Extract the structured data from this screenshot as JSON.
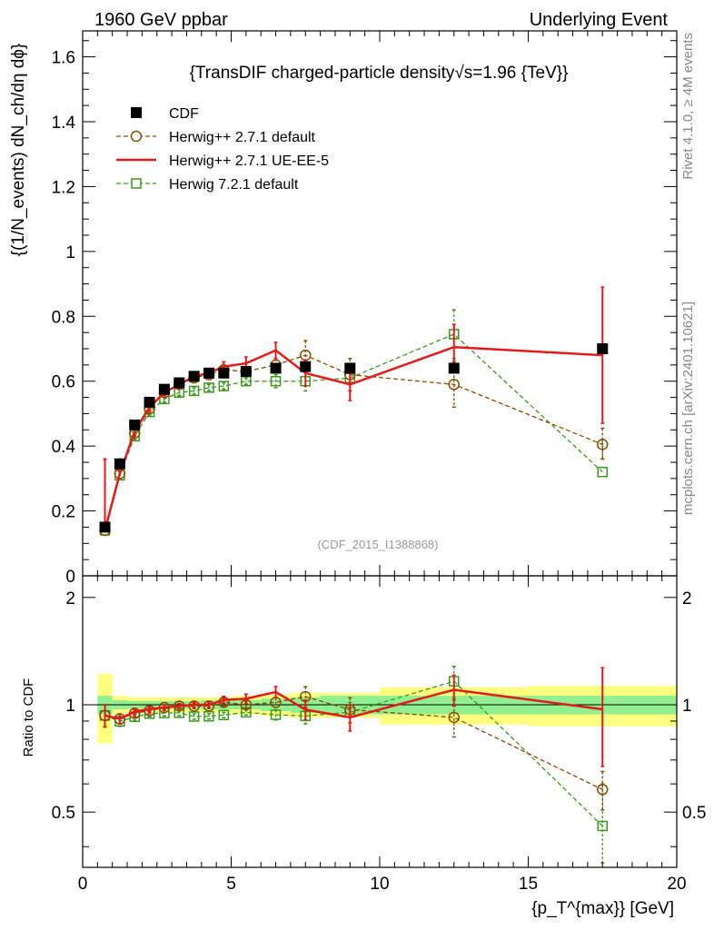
{
  "header": {
    "left": "1960 GeV ppbar",
    "right": "Underlying Event"
  },
  "side_labels": {
    "rivet": "Rivet 4.1.0, ≥ 4M events",
    "mcplots": "mcplots.cern.ch [arXiv:2401.10621]"
  },
  "chart_data": {
    "type": "line",
    "title": "{TransDIF charged-particle density√s=1.96 {TeV}}",
    "watermark": "(CDF_2015_I1388868)",
    "xlabel": "{p_T^{max}} [GeV]",
    "ylabel": "{(1/N_events) dN_ch/dη dϕ}",
    "ratio_ylabel": "Ratio to CDF",
    "xlim": [
      0,
      20
    ],
    "ylim": [
      0,
      1.68
    ],
    "ratio_ylim": [
      0.35,
      2.3
    ],
    "x_ticks": [
      0,
      5,
      10,
      15,
      20
    ],
    "y_ticks": [
      0,
      0.2,
      0.4,
      0.6,
      0.8,
      1,
      1.2,
      1.4,
      1.6
    ],
    "y_tick_labels": [
      "0",
      "0.2",
      "0.4",
      "0.6",
      "0.8",
      "1",
      "1.2",
      "1.4",
      "1.6"
    ],
    "ratio_ticks": [
      0.5,
      1,
      2
    ],
    "ratio_tick_labels": [
      "0.5",
      "1",
      "2"
    ],
    "x": [
      0.75,
      1.25,
      1.75,
      2.25,
      2.75,
      3.25,
      3.75,
      4.25,
      4.75,
      5.5,
      6.5,
      7.5,
      9,
      12.5,
      17.5
    ],
    "bins": [
      [
        0.5,
        1.0
      ],
      [
        1.0,
        1.5
      ],
      [
        1.5,
        2.0
      ],
      [
        2.0,
        2.5
      ],
      [
        2.5,
        3.0
      ],
      [
        3.0,
        3.5
      ],
      [
        3.5,
        4.0
      ],
      [
        4.0,
        4.5
      ],
      [
        4.5,
        5.0
      ],
      [
        5.0,
        6.0
      ],
      [
        6.0,
        7.0
      ],
      [
        7.0,
        8.0
      ],
      [
        8.0,
        10.0
      ],
      [
        10.0,
        15.0
      ],
      [
        15.0,
        20.0
      ]
    ],
    "band_stat": [
      0.06,
      0.03,
      0.025,
      0.025,
      0.025,
      0.025,
      0.025,
      0.03,
      0.03,
      0.03,
      0.04,
      0.05,
      0.06,
      0.06,
      0.06
    ],
    "band_total": [
      0.22,
      0.06,
      0.05,
      0.05,
      0.05,
      0.05,
      0.05,
      0.05,
      0.05,
      0.06,
      0.07,
      0.08,
      0.08,
      0.12,
      0.13
    ],
    "series": [
      {
        "name": "CDF",
        "color": "#000000",
        "style": "data",
        "values": [
          0.15,
          0.345,
          0.465,
          0.535,
          0.575,
          0.595,
          0.615,
          0.625,
          0.625,
          0.63,
          0.64,
          0.645,
          0.64,
          0.64,
          0.7
        ]
      },
      {
        "name": "Herwig++ 2.7.1 default",
        "color": "#8b4a00",
        "style": "circle-dashed",
        "values": [
          0.14,
          0.315,
          0.44,
          0.515,
          0.565,
          0.59,
          0.61,
          0.62,
          0.635,
          0.63,
          0.65,
          0.68,
          0.62,
          0.59,
          0.405
        ],
        "errors": [
          0.01,
          0.01,
          0.01,
          0.01,
          0.01,
          0.01,
          0.01,
          0.01,
          0.015,
          0.015,
          0.02,
          0.045,
          0.05,
          0.07,
          0.05
        ]
      },
      {
        "name": "Herwig++ 2.7.1 UE-EE-5",
        "color": "#e41a1a",
        "style": "solid",
        "values": [
          0.14,
          0.315,
          0.445,
          0.52,
          0.565,
          0.59,
          0.615,
          0.625,
          0.645,
          0.655,
          0.695,
          0.625,
          0.59,
          0.705,
          0.68
        ],
        "errors": [
          0.01,
          0.01,
          0.01,
          0.01,
          0.01,
          0.01,
          0.01,
          0.012,
          0.015,
          0.02,
          0.025,
          0.04,
          0.05,
          0.07,
          0.21
        ]
      },
      {
        "name": "Herwig 7.2.1 default",
        "color": "#3a9a1a",
        "style": "square-dashed",
        "values": [
          0.14,
          0.31,
          0.43,
          0.505,
          0.545,
          0.565,
          0.57,
          0.58,
          0.585,
          0.6,
          0.6,
          0.6,
          0.61,
          0.745,
          0.32
        ],
        "errors": [
          0.01,
          0.01,
          0.01,
          0.01,
          0.01,
          0.01,
          0.01,
          0.01,
          0.01,
          0.01,
          0.02,
          0.03,
          0.04,
          0.075,
          0.1
        ]
      }
    ]
  }
}
